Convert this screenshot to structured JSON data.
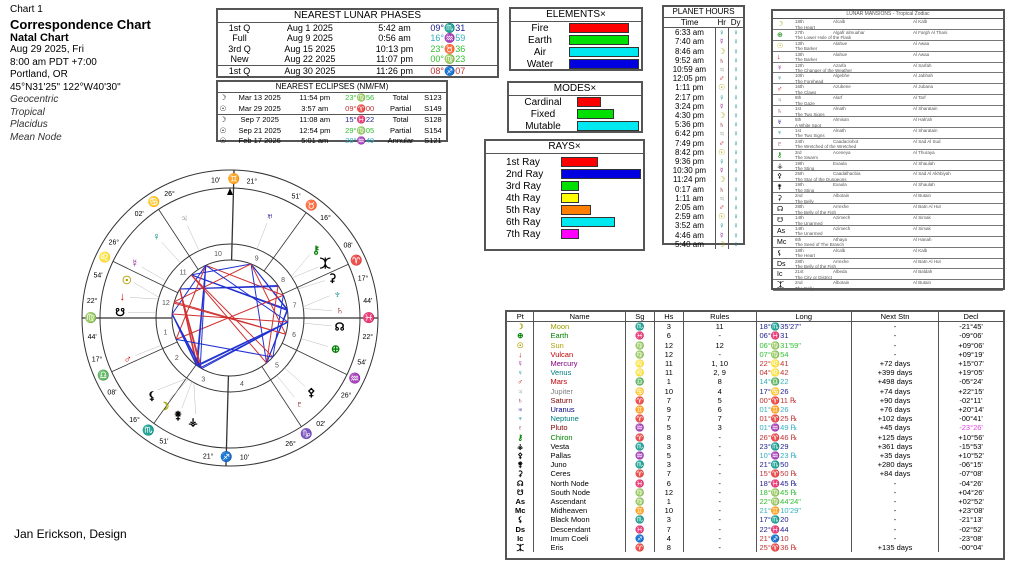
{
  "header": {
    "chart_no": "Chart 1",
    "title": "Correspondence Chart",
    "subtitle": "Natal Chart",
    "date": "Aug 29 2025, Fri",
    "time": "8:00 am  PDT +7:00",
    "place": "Portland, OR",
    "coords": "45°N31'25\" 122°W40'30\"",
    "opts": [
      "Geocentric",
      "Tropical",
      "Placidus",
      "Mean Node"
    ]
  },
  "footer": "Jan Erickson, Design",
  "lunar_phases": {
    "title": "NEAREST LUNAR PHASES",
    "rows": [
      [
        "1st Q",
        "Aug 1 2025",
        "5:42 am",
        "09°♏31",
        "#202090"
      ],
      [
        "Full",
        "Aug 9 2025",
        "0:56 am",
        "16°♒59",
        "#30b0c0"
      ],
      [
        "3rd Q",
        "Aug 15 2025",
        "10:13 pm",
        "23°♉36",
        "#30c030"
      ],
      [
        "New",
        "Aug 22 2025",
        "11:07 pm",
        "00°♍23",
        "#30c030"
      ],
      [
        "1st Q",
        "Aug 30 2025",
        "11:26 pm",
        "08°♐07",
        "#c03030"
      ]
    ]
  },
  "eclipses": {
    "title": "NEAREST ECLIPSES (NM/FM)",
    "rows": [
      [
        "☽",
        "Mar 13 2025",
        "11:54 pm",
        "23°♍56",
        "Total",
        "S123",
        "#30c030"
      ],
      [
        "☉",
        "Mar 29 2025",
        "3:57 am",
        "09°♈00",
        "Partial",
        "S149",
        "#c03030"
      ],
      [
        "☽",
        "Sep 7 2025",
        "11:08 am",
        "15°♓22",
        "Total",
        "S128",
        "#202090"
      ],
      [
        "☉",
        "Sep 21 2025",
        "12:54 pm",
        "29°♍05",
        "Partial",
        "S154",
        "#30c030"
      ],
      [
        "☉",
        "Feb 17 2026",
        "5:01 am",
        "28°♒49",
        "Annular",
        "S121",
        "#30b0c0"
      ]
    ]
  },
  "elements": {
    "title": "ELEMENTS",
    "items": [
      {
        "label": "Fire",
        "value": 0.85,
        "color": "#ff0000"
      },
      {
        "label": "Earth",
        "value": 0.85,
        "color": "#00e000"
      },
      {
        "label": "Air",
        "value": 1.0,
        "color": "#00e8f0"
      },
      {
        "label": "Water",
        "value": 1.0,
        "color": "#0000e0"
      }
    ]
  },
  "modes": {
    "title": "MODES",
    "items": [
      {
        "label": "Cardinal",
        "value": 0.38,
        "color": "#ff0000"
      },
      {
        "label": "Fixed",
        "value": 0.6,
        "color": "#00e000"
      },
      {
        "label": "Mutable",
        "value": 1.0,
        "color": "#00e8f0"
      }
    ]
  },
  "rays": {
    "title": "RAYS",
    "items": [
      {
        "label": "1st Ray",
        "value": 0.46,
        "color": "#ff0000"
      },
      {
        "label": "2nd Ray",
        "value": 1.0,
        "color": "#0000e0"
      },
      {
        "label": "3rd Ray",
        "value": 0.22,
        "color": "#00e000"
      },
      {
        "label": "4th Ray",
        "value": 0.22,
        "color": "#ffff00"
      },
      {
        "label": "5th Ray",
        "value": 0.38,
        "color": "#ff8000"
      },
      {
        "label": "6th Ray",
        "value": 0.68,
        "color": "#00e8f0"
      },
      {
        "label": "7th Ray",
        "value": 0.22,
        "color": "#ff00ff"
      }
    ]
  },
  "planet_hours": {
    "title": "PLANET HOURS",
    "cols": [
      "Time",
      "Hr",
      "Dy"
    ],
    "rows": [
      [
        "6:33 am",
        "♀"
      ],
      [
        "7:40 am",
        "☿"
      ],
      [
        "8:46 am",
        "☽"
      ],
      [
        "9:52 am",
        "♄"
      ],
      [
        "10:59 am",
        "♃"
      ],
      [
        "12:05 pm",
        "♂"
      ],
      [
        "1:11 pm",
        "☉"
      ],
      [
        "2:17 pm",
        "♀"
      ],
      [
        "3:24 pm",
        "☿"
      ],
      [
        "4:30 pm",
        "☽"
      ],
      [
        "5:36 pm",
        "♄"
      ],
      [
        "6:42 pm",
        "♃"
      ],
      [
        "7:49 pm",
        "♂"
      ],
      [
        "8:42 pm",
        "☉"
      ],
      [
        "9:36 pm",
        "♀"
      ],
      [
        "10:30 pm",
        "☿"
      ],
      [
        "11:24 pm",
        "☽"
      ],
      [
        "0:17 am",
        "♄"
      ],
      [
        "1:11 am",
        "♃"
      ],
      [
        "2:05 am",
        "♂"
      ],
      [
        "2:59 am",
        "☉"
      ],
      [
        "3:52 am",
        "♀"
      ],
      [
        "4:46 am",
        "☿"
      ],
      [
        "5:40 am",
        "☽"
      ]
    ],
    "day": "♀"
  },
  "lunar_mansions": {
    "title": "LUNAR MANSIONS - Tropical Zodiac",
    "rows": [
      [
        "☽",
        "18th",
        "Alcalb",
        "Al Kalb",
        "The Heart"
      ],
      [
        "⊕",
        "27th",
        "Algafr almuahar",
        "Al Fargh Al Thani",
        "The Lower Hole of the Flask"
      ],
      [
        "☉",
        "13th",
        "Alahue",
        "Al Awaa",
        "The Barker"
      ],
      [
        "↓",
        "13th",
        "Alahue",
        "Al Awaa",
        "The Barker"
      ],
      [
        "☿",
        "12th",
        "Azarfa",
        "Al Sarfah",
        "The Changer of the Weather"
      ],
      [
        "♀",
        "10th",
        "Algebhe",
        "Al Jabhah",
        "The Forehead"
      ],
      [
        "♂",
        "16th",
        "Azubene",
        "Al Jubana",
        "The Claws"
      ],
      [
        "♃",
        "8th",
        "Alarf",
        "Al Tarf",
        "The Gaze"
      ],
      [
        "♄",
        "1st",
        "Alnath",
        "Al Sharatain",
        "The Two Signs"
      ],
      [
        "♅",
        "5th",
        "Almisan",
        "Al Hak'ah",
        "A White Spot"
      ],
      [
        "♆",
        "1st",
        "Alnath",
        "Al Sharatain",
        "The Two Signs"
      ],
      [
        "♇",
        "24th",
        "Caadaclohot",
        "Al Sad Al Sud",
        "The Wretched of the Wretched"
      ],
      [
        "⚷",
        "3rd",
        "Aceneya",
        "Al Thuraya",
        "The Swarm"
      ],
      [
        "⚶",
        "19th",
        "Exaula",
        "Al Shaulah",
        "The Sting"
      ],
      [
        "⚴",
        "25th",
        "Caadalhacbia",
        "Al Sad Al Akhbiyah",
        "The Star of the Dungeons"
      ],
      [
        "⚵",
        "19th",
        "Exaula",
        "Al Shaulah",
        "The Sting"
      ],
      [
        "⚳",
        "2nd",
        "Albotain",
        "Al Butain",
        "The Belly"
      ],
      [
        "☊",
        "28th",
        "Arrexhe",
        "Al Batn Al Hut",
        "The Belly of the Fish"
      ],
      [
        "☋",
        "14th",
        "Azimech",
        "Al Simak",
        "The Unarmed"
      ],
      [
        "As",
        "14th",
        "Azimech",
        "Al Simak",
        "The Unarmed"
      ],
      [
        "Mc",
        "6th",
        "Athaya",
        "Al Hanah",
        "The Seed of The Branch"
      ],
      [
        "⚸",
        "18th",
        "Alcalb",
        "Al Kalb",
        "The Heart"
      ],
      [
        "Ds",
        "28th",
        "Arrexhe",
        "Al Batn Al Hut",
        "The Belly of the Fish"
      ],
      [
        "Ic",
        "21st",
        "Albeda",
        "Al Baldah",
        "The City or District"
      ],
      [
        "⯰",
        "2nd",
        "Albotain",
        "Al Butain",
        "The Belly"
      ]
    ]
  },
  "planet_table": {
    "cols": [
      "Pt",
      "Name",
      "Sg",
      "Hs",
      "Rules",
      "Long",
      "Next Stn",
      "Decl"
    ],
    "rows": [
      {
        "g": "☽",
        "name": "Moon",
        "sg": "♏",
        "hs": "3",
        "rules": "11",
        "long": "18°♏35'27\"",
        "stn": "-",
        "decl": "-21°45'",
        "c": "#a0a000",
        "lc": "#202090",
        "lon": 228.59
      },
      {
        "g": "⊕",
        "name": "Earth",
        "sg": "♓",
        "hs": "6",
        "rules": "-",
        "long": "06°♓31",
        "stn": "-",
        "decl": "-09°06'",
        "c": "#008000",
        "lc": "#202090",
        "lon": 336.52
      },
      {
        "g": "☉",
        "name": "Sun",
        "sg": "♍",
        "hs": "12",
        "rules": "12",
        "long": "06°♍31'59\"",
        "stn": "-",
        "decl": "+09°06'",
        "c": "#b0a000",
        "lc": "#30c030",
        "lon": 156.53
      },
      {
        "g": "↓",
        "name": "Vulcan",
        "sg": "♍",
        "hs": "12",
        "rules": "-",
        "long": "07°♍54",
        "stn": "-",
        "decl": "+09°19'",
        "c": "#c00000",
        "lc": "#30c030",
        "lon": 157.9
      },
      {
        "g": "☿",
        "name": "Mercury",
        "sg": "♌",
        "hs": "11",
        "rules": "1, 10",
        "long": "22°♌41",
        "stn": "+72 days",
        "decl": "+15°07'",
        "c": "#800080",
        "lc": "#c03030",
        "lon": 142.68
      },
      {
        "g": "♀",
        "name": "Venus",
        "sg": "♌",
        "hs": "11",
        "rules": "2, 9",
        "long": "04°♌42",
        "stn": "+399 days",
        "decl": "+19°05'",
        "c": "#008080",
        "lc": "#c03030",
        "lon": 124.7
      },
      {
        "g": "♂",
        "name": "Mars",
        "sg": "♎",
        "hs": "1",
        "rules": "8",
        "long": "14°♎22",
        "stn": "+498 days",
        "decl": "-05°24'",
        "c": "#c00000",
        "lc": "#30b0c0",
        "lon": 194.37
      },
      {
        "g": "♃",
        "name": "Jupiter",
        "sg": "♋",
        "hs": "10",
        "rules": "4",
        "long": "17°♋26",
        "stn": "+74 days",
        "decl": "+22°15'",
        "c": "#808080",
        "lc": "#202090",
        "lon": 107.43
      },
      {
        "g": "♄",
        "name": "Saturn",
        "sg": "♈",
        "hs": "7",
        "rules": "5",
        "long": "00°♈11 ℞",
        "stn": "+90 days",
        "decl": "-02°11'",
        "c": "#800000",
        "lc": "#c03030",
        "lon": 0.18
      },
      {
        "g": "♅",
        "name": "Uranus",
        "sg": "♊",
        "hs": "9",
        "rules": "6",
        "long": "01°♊26",
        "stn": "+76 days",
        "decl": "+20°14'",
        "c": "#000080",
        "lc": "#30b0c0",
        "lon": 61.43
      },
      {
        "g": "♆",
        "name": "Neptune",
        "sg": "♈",
        "hs": "7",
        "rules": "7",
        "long": "01°♈25 ℞",
        "stn": "+102 days",
        "decl": "-00°41'",
        "c": "#008080",
        "lc": "#c03030",
        "lon": 1.43
      },
      {
        "g": "♇",
        "name": "Pluto",
        "sg": "♒",
        "hs": "5",
        "rules": "3",
        "long": "01°♒49 ℞",
        "stn": "+45 days",
        "decl": "-23°26'",
        "c": "#800000",
        "lc": "#30b0c0",
        "dc": "#e040e0",
        "lon": 301.82
      },
      {
        "g": "⚷",
        "name": "Chiron",
        "sg": "♈",
        "hs": "8",
        "rules": "-",
        "long": "26°♈46 ℞",
        "stn": "+125 days",
        "decl": "+10°56'",
        "c": "#008000",
        "lc": "#c03030",
        "lon": 26.77
      },
      {
        "g": "⚶",
        "name": "Vesta",
        "sg": "♏",
        "hs": "3",
        "rules": "-",
        "long": "23°♏29",
        "stn": "+361 days",
        "decl": "-15°53'",
        "c": "#000",
        "lc": "#202090",
        "lon": 233.48
      },
      {
        "g": "⚴",
        "name": "Pallas",
        "sg": "♒",
        "hs": "5",
        "rules": "-",
        "long": "10°♒23 ℞",
        "stn": "+35 days",
        "decl": "+10°52'",
        "c": "#000",
        "lc": "#30b0c0",
        "lon": 310.38
      },
      {
        "g": "⚵",
        "name": "Juno",
        "sg": "♏",
        "hs": "3",
        "rules": "-",
        "long": "21°♏50",
        "stn": "+280 days",
        "decl": "-06°15'",
        "c": "#000",
        "lc": "#202090",
        "lon": 231.83
      },
      {
        "g": "⚳",
        "name": "Ceres",
        "sg": "♈",
        "hs": "7",
        "rules": "-",
        "long": "15°♈50 ℞",
        "stn": "+84 days",
        "decl": "-07°08'",
        "c": "#000",
        "lc": "#c03030",
        "lon": 15.83
      },
      {
        "g": "☊",
        "name": "North Node",
        "sg": "♓",
        "hs": "6",
        "rules": "-",
        "long": "18°♓45 ℞",
        "stn": "-",
        "decl": "-04°26'",
        "c": "#000",
        "lc": "#202090",
        "lon": 348.75
      },
      {
        "g": "☋",
        "name": "South Node",
        "sg": "♍",
        "hs": "12",
        "rules": "-",
        "long": "18°♍45 ℞",
        "stn": "-",
        "decl": "+04°26'",
        "c": "#000",
        "lc": "#30c030",
        "lon": 168.75
      },
      {
        "g": "As",
        "name": "Ascendant",
        "sg": "♍",
        "hs": "1",
        "rules": "-",
        "long": "22°♍44'24\"",
        "stn": "-",
        "decl": "+02°52'",
        "c": "#000",
        "lc": "#30c030"
      },
      {
        "g": "Mc",
        "name": "Midheaven",
        "sg": "♊",
        "hs": "10",
        "rules": "-",
        "long": "21°♊10'29\"",
        "stn": "-",
        "decl": "+23°08'",
        "c": "#000",
        "lc": "#30b0c0"
      },
      {
        "g": "⚸",
        "name": "Black Moon",
        "sg": "♏",
        "hs": "3",
        "rules": "-",
        "long": "17°♏20",
        "stn": "-",
        "decl": "-21°13'",
        "c": "#000",
        "lc": "#202090",
        "lon": 227.33
      },
      {
        "g": "Ds",
        "name": "Descendant",
        "sg": "♓",
        "hs": "7",
        "rules": "-",
        "long": "22°♓44",
        "stn": "-",
        "decl": "-02°52'",
        "c": "#000",
        "lc": "#202090"
      },
      {
        "g": "Ic",
        "name": "Imum Coeli",
        "sg": "♐",
        "hs": "4",
        "rules": "-",
        "long": "21°♐10",
        "stn": "-",
        "decl": "-23°08'",
        "c": "#000",
        "lc": "#c03030"
      },
      {
        "g": "⯰",
        "name": "Eris",
        "sg": "♈",
        "hs": "8",
        "rules": "-",
        "long": "25°♈36 ℞",
        "stn": "+135 days",
        "decl": "-00°04'",
        "c": "#000",
        "lc": "#c03030",
        "lon": 25.6
      }
    ]
  },
  "wheel": {
    "asc_lon": 172.73,
    "cusps": [
      {
        "house": "1",
        "lon": 172.73,
        "deg": "22°",
        "sign": "♍",
        "min": "44'"
      },
      {
        "house": "2",
        "lon": 197.13,
        "deg": "17°",
        "sign": "♎",
        "min": "08'"
      },
      {
        "house": "3",
        "lon": 226.85,
        "deg": "16°",
        "sign": "♏",
        "min": "51'"
      },
      {
        "house": "4",
        "lon": 261.17,
        "deg": "21°",
        "sign": "♐",
        "min": "10'"
      },
      {
        "house": "5",
        "lon": 296.03,
        "deg": "26°",
        "sign": "♑",
        "min": "02'"
      },
      {
        "house": "6",
        "lon": 326.9,
        "deg": "26°",
        "sign": "♒",
        "min": "54'"
      },
      {
        "house": "7",
        "lon": 352.73,
        "deg": "22°",
        "sign": "♓",
        "min": "44'"
      },
      {
        "house": "8",
        "lon": 17.13,
        "deg": "17°",
        "sign": "♈",
        "min": "08'"
      },
      {
        "house": "9",
        "lon": 46.85,
        "deg": "16°",
        "sign": "♉",
        "min": "51'"
      },
      {
        "house": "10",
        "lon": 81.17,
        "deg": "21°",
        "sign": "♊",
        "min": "10'"
      },
      {
        "house": "11",
        "lon": 116.03,
        "deg": "26°",
        "sign": "♋",
        "min": "02'"
      },
      {
        "house": "12",
        "lon": 146.9,
        "deg": "26°",
        "sign": "♌",
        "min": "54'"
      }
    ]
  }
}
